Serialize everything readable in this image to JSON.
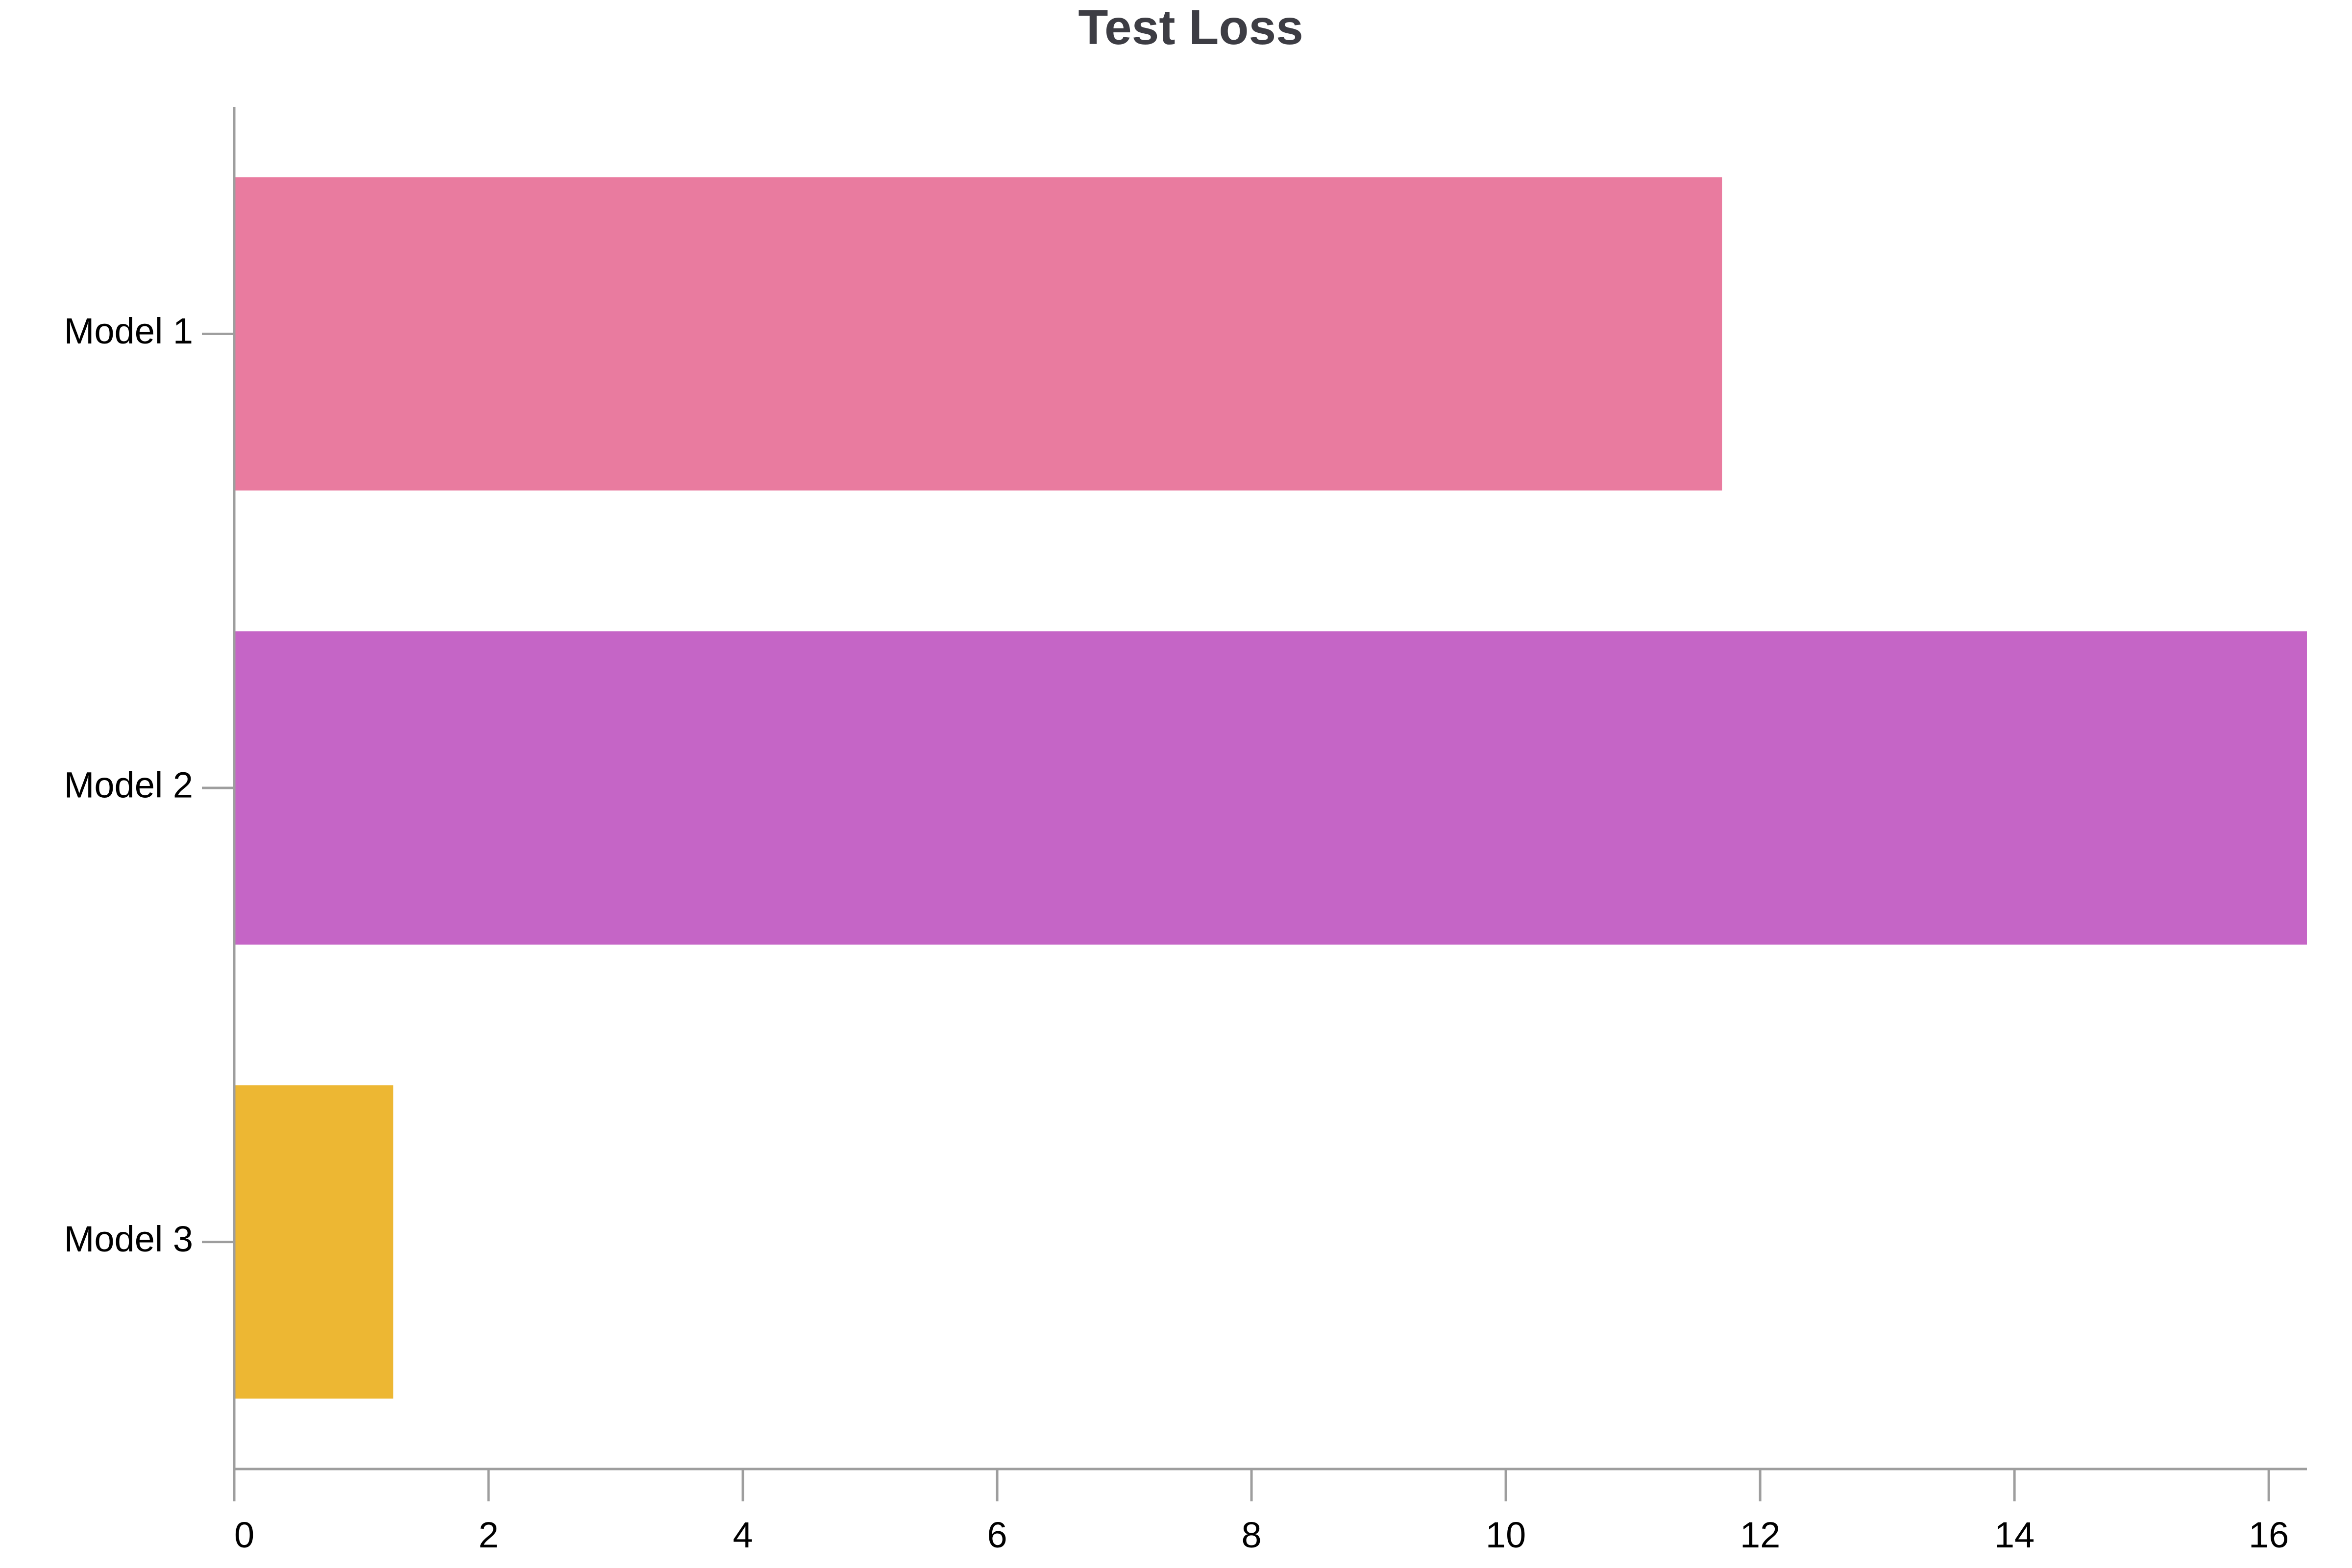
{
  "chart_data": {
    "type": "bar",
    "orientation": "horizontal",
    "title": "Test Loss",
    "xlabel": "",
    "ylabel": "",
    "categories": [
      "Model 1",
      "Model 2",
      "Model 3"
    ],
    "values": [
      11.7,
      16.3,
      1.25
    ],
    "colors": [
      "#e97b9f",
      "#c565c6",
      "#edb733"
    ],
    "xlim": [
      0,
      16.3
    ],
    "xticks": [
      0,
      2,
      4,
      6,
      8,
      10,
      12,
      14,
      16
    ],
    "grid": false,
    "legend": "none"
  }
}
